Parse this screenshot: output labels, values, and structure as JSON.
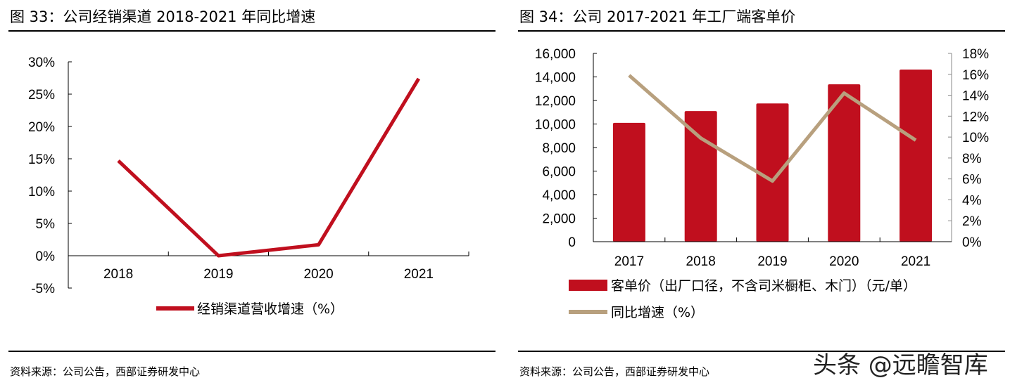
{
  "watermark": "头条 @远瞻智库",
  "colors": {
    "bar": "#C00F1E",
    "line1": "#C00F1E",
    "line2": "#B8A07E"
  },
  "chart_data": [
    {
      "title": "图 33：公司经销渠道 2018-2021 年同比增速",
      "type": "line",
      "categories": [
        "2018",
        "2019",
        "2020",
        "2021"
      ],
      "series": [
        {
          "name": "经销渠道营收增速（%）",
          "values": [
            14.7,
            0.0,
            1.7,
            27.4
          ]
        }
      ],
      "yticks": [
        "-5%",
        "0%",
        "5%",
        "10%",
        "15%",
        "20%",
        "25%",
        "30%"
      ],
      "ylim": [
        -5,
        30
      ],
      "grid": false,
      "legend": "bottom",
      "source": "资料来源：公司公告，西部证券研发中心"
    },
    {
      "title": "图 34：公司 2017-2021 年工厂端客单价",
      "type": "bar",
      "categories": [
        "2017",
        "2018",
        "2019",
        "2020",
        "2021"
      ],
      "series": [
        {
          "name": "客单价（出厂口径，不含司米橱柜、木门）（元/单）",
          "type": "bar",
          "axis": "left",
          "values": [
            10100,
            11100,
            11750,
            13370,
            14630
          ]
        },
        {
          "name": "同比增速（%）",
          "type": "line",
          "axis": "right",
          "values": [
            15.9,
            9.9,
            5.8,
            14.2,
            9.7
          ]
        }
      ],
      "yticks_left": [
        "0",
        "2,000",
        "4,000",
        "6,000",
        "8,000",
        "10,000",
        "12,000",
        "14,000",
        "16,000"
      ],
      "ylim_left": [
        0,
        16000
      ],
      "yticks_right": [
        "0%",
        "2%",
        "4%",
        "6%",
        "8%",
        "10%",
        "12%",
        "14%",
        "16%",
        "18%"
      ],
      "ylim_right": [
        0,
        18
      ],
      "grid": false,
      "legend": "bottom",
      "source": "资料来源：公司公告，西部证券研发中心"
    }
  ]
}
